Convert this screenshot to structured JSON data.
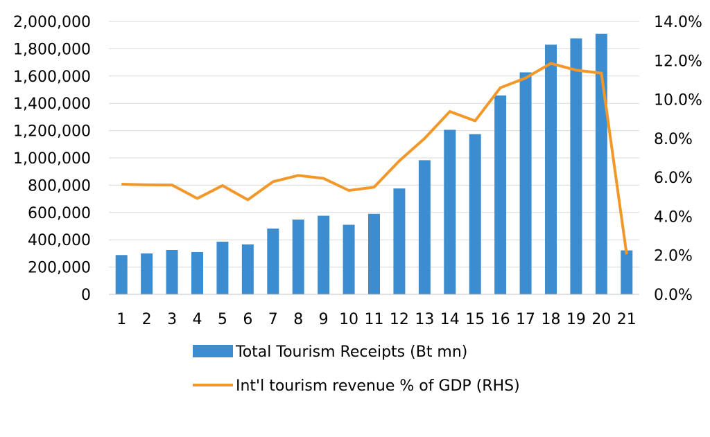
{
  "chart_data": {
    "type": "bar",
    "categories": [
      "1",
      "2",
      "3",
      "4",
      "5",
      "6",
      "7",
      "8",
      "9",
      "10",
      "11",
      "12",
      "13",
      "14",
      "15",
      "16",
      "17",
      "18",
      "19",
      "20",
      "21"
    ],
    "series": [
      {
        "name": "Total Tourism Receipts (Bt mn)",
        "type": "bar",
        "axis": "left",
        "color": "#3c8dd0",
        "values": [
          288000,
          300000,
          325000,
          310000,
          386000,
          366000,
          482000,
          548000,
          576000,
          510000,
          590000,
          776000,
          983000,
          1206000,
          1174000,
          1458000,
          1627000,
          1830000,
          1876000,
          1910000,
          322000
        ]
      },
      {
        "name": "Int'l tourism revenue % of GDP (RHS)",
        "type": "line",
        "axis": "right",
        "color": "#f2982a",
        "values": [
          5.65,
          5.62,
          5.61,
          4.92,
          5.58,
          4.85,
          5.78,
          6.1,
          5.95,
          5.33,
          5.5,
          6.85,
          8.0,
          9.38,
          8.9,
          10.6,
          11.1,
          11.85,
          11.5,
          11.35,
          2.05
        ]
      }
    ],
    "y_left": {
      "ylim": [
        0,
        2000000
      ],
      "ticks": [
        "0",
        "200,000",
        "400,000",
        "600,000",
        "800,000",
        "1,000,000",
        "1,200,000",
        "1,400,000",
        "1,600,000",
        "1,800,000",
        "2,000,000"
      ]
    },
    "y_right": {
      "ylim": [
        0,
        14
      ],
      "ticks": [
        "0.0%",
        "2.0%",
        "4.0%",
        "6.0%",
        "8.0%",
        "10.0%",
        "12.0%",
        "14.0%"
      ]
    },
    "grid": true,
    "legend_position": "bottom"
  }
}
